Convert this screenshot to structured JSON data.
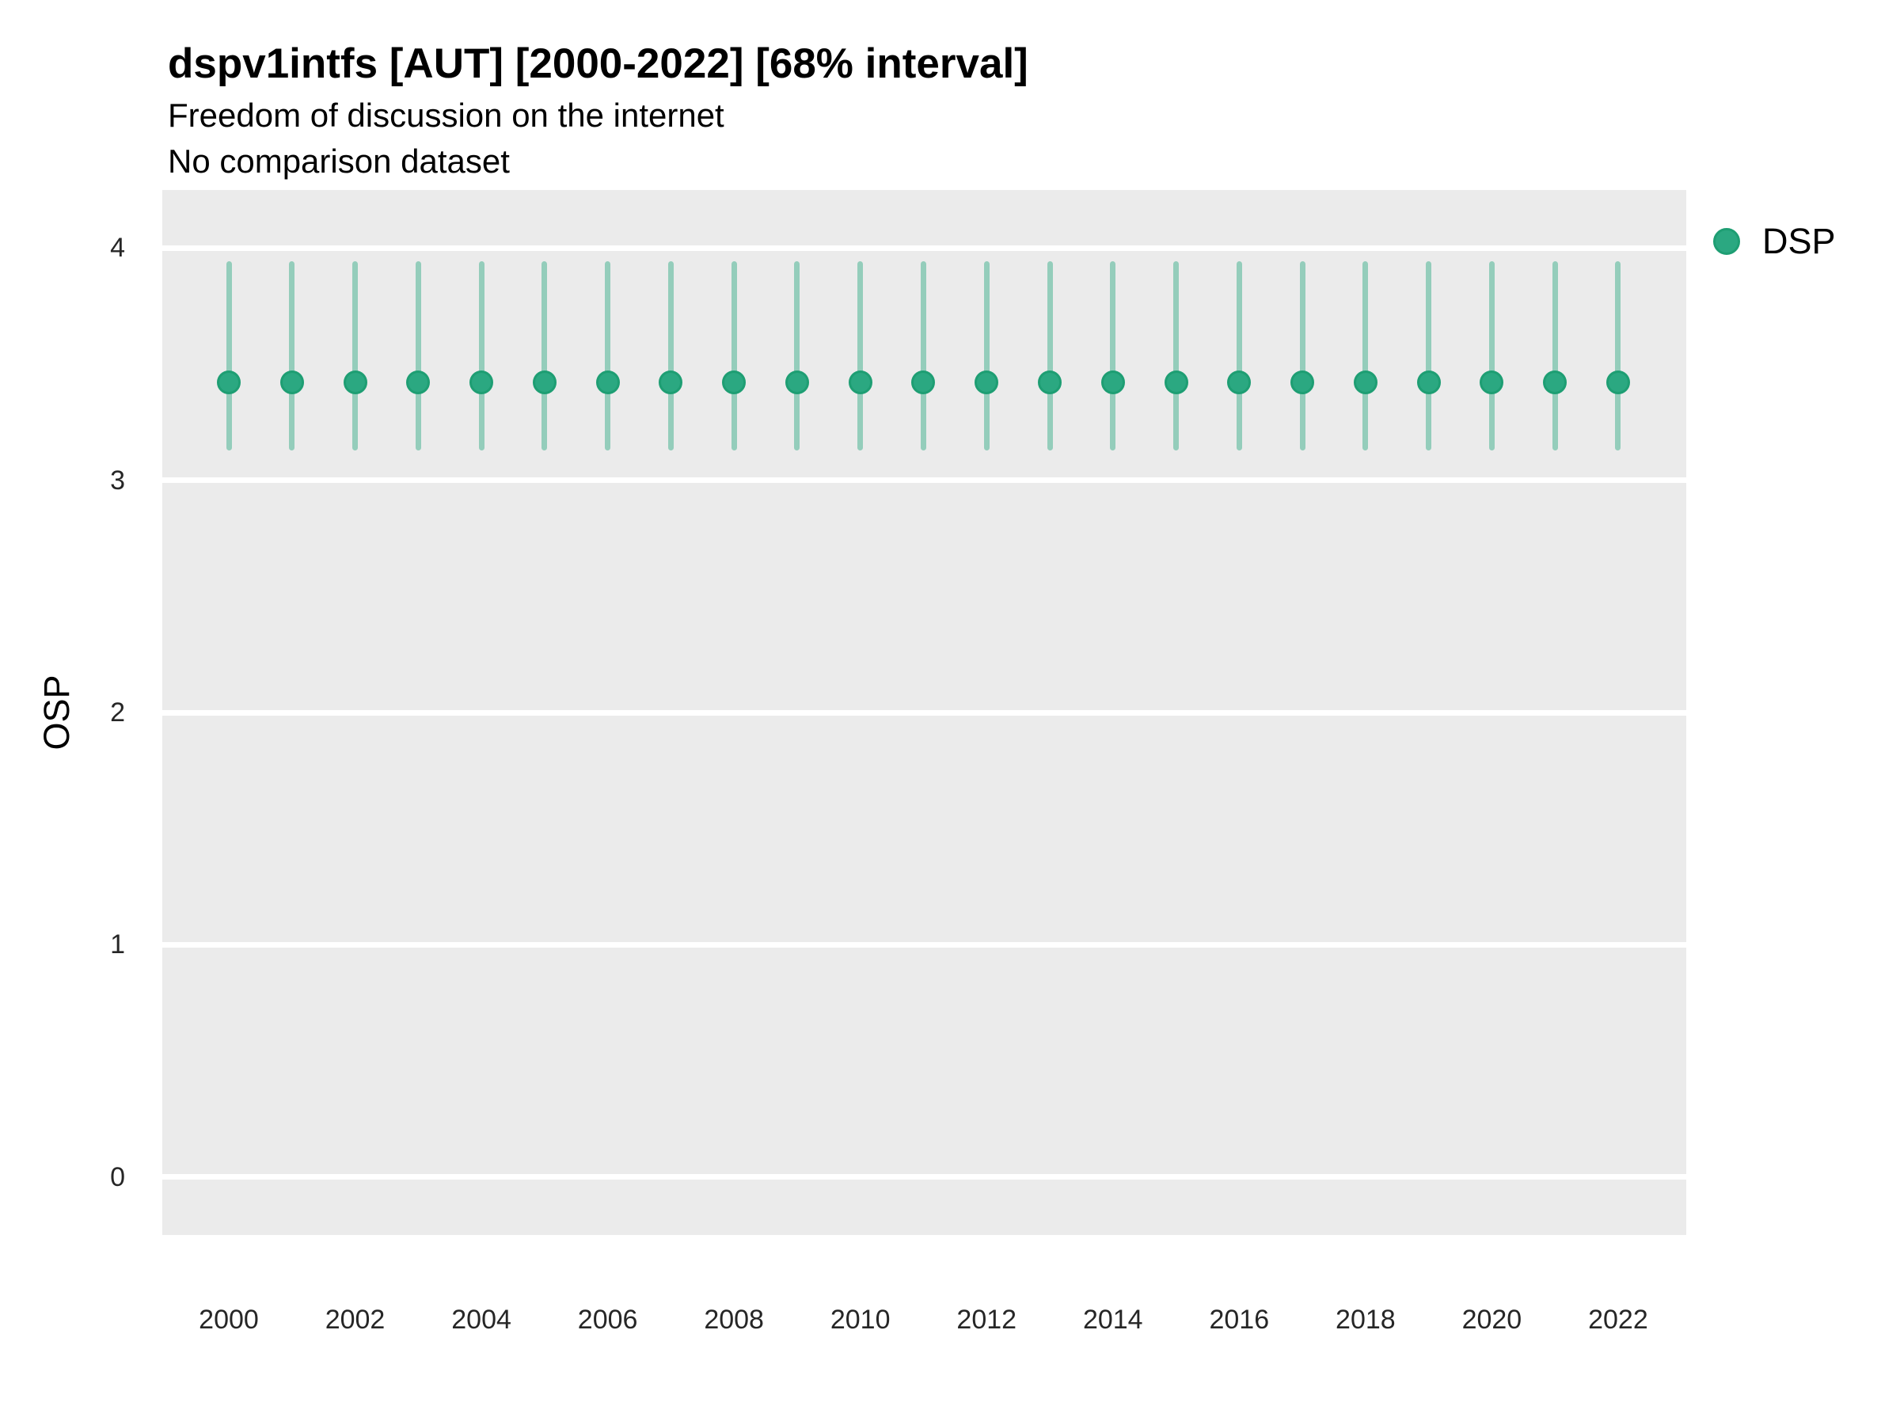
{
  "title": "dspv1intfs [AUT] [2000-2022] [68% interval]",
  "subtitle_line1": "Freedom of discussion on the internet",
  "subtitle_line2": "No comparison dataset",
  "legend": {
    "position": "right-top",
    "items": [
      {
        "label": "DSP",
        "marker": "circle-icon",
        "color": "#2BA881"
      }
    ]
  },
  "colors": {
    "point": "#2BA881",
    "point_border": "#1E9E73",
    "interval": "rgba(43,168,129,0.45)",
    "panel_background": "#EBEBEB",
    "gridline": "#FFFFFF",
    "axis_text": "#262626",
    "title_text": "#000000"
  },
  "chart_data": {
    "type": "scatter",
    "title": "dspv1intfs [AUT] [2000-2022] [68% interval]",
    "subtitle": [
      "Freedom of discussion on the internet",
      "No comparison dataset"
    ],
    "xlabel": "",
    "ylabel": "OSP",
    "interval_level": "68%",
    "x_ticks": [
      2000,
      2002,
      2004,
      2006,
      2008,
      2010,
      2012,
      2014,
      2016,
      2018,
      2020,
      2022
    ],
    "y_ticks": [
      4,
      3,
      2,
      1,
      0
    ],
    "xlim": [
      1998.9,
      2023.1
    ],
    "ylim": [
      -0.25,
      4.25
    ],
    "grid": "major-horizontal-only",
    "legend_position": "right-top",
    "series": [
      {
        "name": "DSP",
        "x": [
          2000,
          2001,
          2002,
          2003,
          2004,
          2005,
          2006,
          2007,
          2008,
          2009,
          2010,
          2011,
          2012,
          2013,
          2014,
          2015,
          2016,
          2017,
          2018,
          2019,
          2020,
          2021,
          2022
        ],
        "y": [
          3.42,
          3.42,
          3.42,
          3.42,
          3.42,
          3.42,
          3.42,
          3.42,
          3.42,
          3.42,
          3.42,
          3.42,
          3.42,
          3.42,
          3.42,
          3.42,
          3.42,
          3.42,
          3.42,
          3.42,
          3.42,
          3.42,
          3.42
        ],
        "ci_low": [
          3.14,
          3.14,
          3.14,
          3.14,
          3.14,
          3.14,
          3.14,
          3.14,
          3.14,
          3.14,
          3.14,
          3.14,
          3.14,
          3.14,
          3.14,
          3.14,
          3.14,
          3.14,
          3.14,
          3.14,
          3.14,
          3.14,
          3.14
        ],
        "ci_high": [
          3.93,
          3.93,
          3.93,
          3.93,
          3.93,
          3.93,
          3.93,
          3.93,
          3.93,
          3.93,
          3.93,
          3.93,
          3.93,
          3.93,
          3.93,
          3.93,
          3.93,
          3.93,
          3.93,
          3.93,
          3.93,
          3.93,
          3.93
        ]
      }
    ]
  }
}
